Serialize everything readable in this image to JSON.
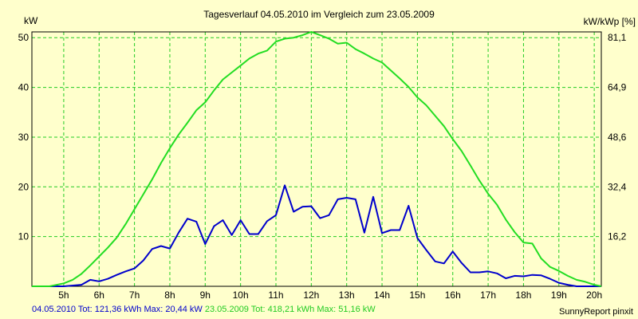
{
  "chart_data": {
    "type": "line",
    "title": "Tagesverlauf 04.05.2010 im Vergleich zum 23.05.2009",
    "ylabel_left": "kW",
    "ylabel_right": "kW/kWp [%]",
    "ylim": [
      0,
      51.16
    ],
    "y_ticks_left": [
      "10",
      "20",
      "30",
      "40",
      "50"
    ],
    "y_ticks_right": [
      "16,2",
      "32,4",
      "48,6",
      "64,9",
      "81,1"
    ],
    "xlim": [
      4.1,
      20.2
    ],
    "x_ticks": [
      "5h",
      "6h",
      "7h",
      "8h",
      "9h",
      "10h",
      "11h",
      "12h",
      "13h",
      "14h",
      "15h",
      "16h",
      "17h",
      "18h",
      "19h",
      "20h"
    ],
    "grid": true,
    "background_color": "#ffffcc",
    "series": [
      {
        "name": "04.05.2010",
        "color": "#0000cc",
        "x": [
          4.1,
          5.0,
          5.5,
          5.75,
          6.0,
          6.25,
          6.5,
          6.75,
          7.0,
          7.25,
          7.5,
          7.75,
          8.0,
          8.25,
          8.5,
          8.75,
          9.0,
          9.25,
          9.5,
          9.75,
          10.0,
          10.25,
          10.5,
          10.75,
          11.0,
          11.25,
          11.5,
          11.75,
          12.0,
          12.25,
          12.5,
          12.75,
          13.0,
          13.25,
          13.5,
          13.75,
          14.0,
          14.25,
          14.5,
          14.75,
          15.0,
          15.25,
          15.5,
          15.75,
          16.0,
          16.25,
          16.5,
          16.75,
          17.0,
          17.25,
          17.5,
          17.75,
          18.0,
          18.25,
          18.5,
          18.75,
          19.0,
          19.25,
          19.5,
          19.75,
          20.0,
          20.2
        ],
        "values": [
          0,
          0,
          0.3,
          1.3,
          1.0,
          1.5,
          2.3,
          3.0,
          3.6,
          5.2,
          7.5,
          8.1,
          7.6,
          10.8,
          13.6,
          13.0,
          8.5,
          12.1,
          13.3,
          10.3,
          13.3,
          10.5,
          10.5,
          13.1,
          14.3,
          20.3,
          15.0,
          16.0,
          16.1,
          13.7,
          14.3,
          17.5,
          17.8,
          17.5,
          10.8,
          18.0,
          10.7,
          11.3,
          11.3,
          16.2,
          9.7,
          7.3,
          5.0,
          4.6,
          7.0,
          4.7,
          2.8,
          2.8,
          3.0,
          2.6,
          1.6,
          2.1,
          2.0,
          2.3,
          2.2,
          1.5,
          0.7,
          0.3,
          0,
          0,
          0,
          0
        ]
      },
      {
        "name": "23.05.2009",
        "color": "#22dd22",
        "x": [
          4.1,
          4.6,
          5.0,
          5.25,
          5.5,
          5.75,
          6.0,
          6.25,
          6.5,
          6.75,
          7.0,
          7.25,
          7.5,
          7.75,
          8.0,
          8.25,
          8.5,
          8.75,
          9.0,
          9.25,
          9.5,
          9.75,
          10.0,
          10.25,
          10.5,
          10.75,
          11.0,
          11.25,
          11.5,
          11.75,
          12.0,
          12.25,
          12.5,
          12.75,
          13.0,
          13.25,
          13.5,
          13.75,
          14.0,
          14.25,
          14.5,
          14.75,
          15.0,
          15.25,
          15.5,
          15.75,
          16.0,
          16.25,
          16.5,
          16.75,
          17.0,
          17.25,
          17.5,
          17.75,
          18.0,
          18.25,
          18.5,
          18.75,
          19.0,
          19.25,
          19.5,
          19.75,
          20.0,
          20.2
        ],
        "values": [
          0,
          0,
          0.6,
          1.3,
          2.5,
          4.2,
          6.0,
          7.8,
          9.8,
          12.5,
          15.5,
          18.5,
          21.5,
          24.8,
          27.8,
          30.5,
          32.9,
          35.4,
          37.0,
          39.4,
          41.6,
          43.0,
          44.4,
          45.8,
          46.8,
          47.4,
          49.2,
          49.8,
          50.0,
          50.5,
          51.16,
          50.5,
          49.8,
          48.8,
          49.0,
          47.7,
          46.8,
          45.8,
          45.0,
          43.4,
          41.8,
          40.1,
          38.0,
          36.4,
          34.3,
          32.2,
          29.6,
          27.2,
          24.3,
          21.3,
          18.6,
          16.4,
          13.4,
          10.9,
          8.8,
          8.6,
          5.6,
          3.9,
          3.1,
          2.1,
          1.3,
          0.9,
          0.3,
          0
        ]
      }
    ]
  },
  "footer": {
    "series1_text": "04.05.2010 Tot: 121,36 kWh Max: 20,44 kW",
    "series2_text": "23.05.2009 Tot: 418,21 kWh Max: 51,16 kW",
    "credit": "SunnyReport pinxit"
  }
}
